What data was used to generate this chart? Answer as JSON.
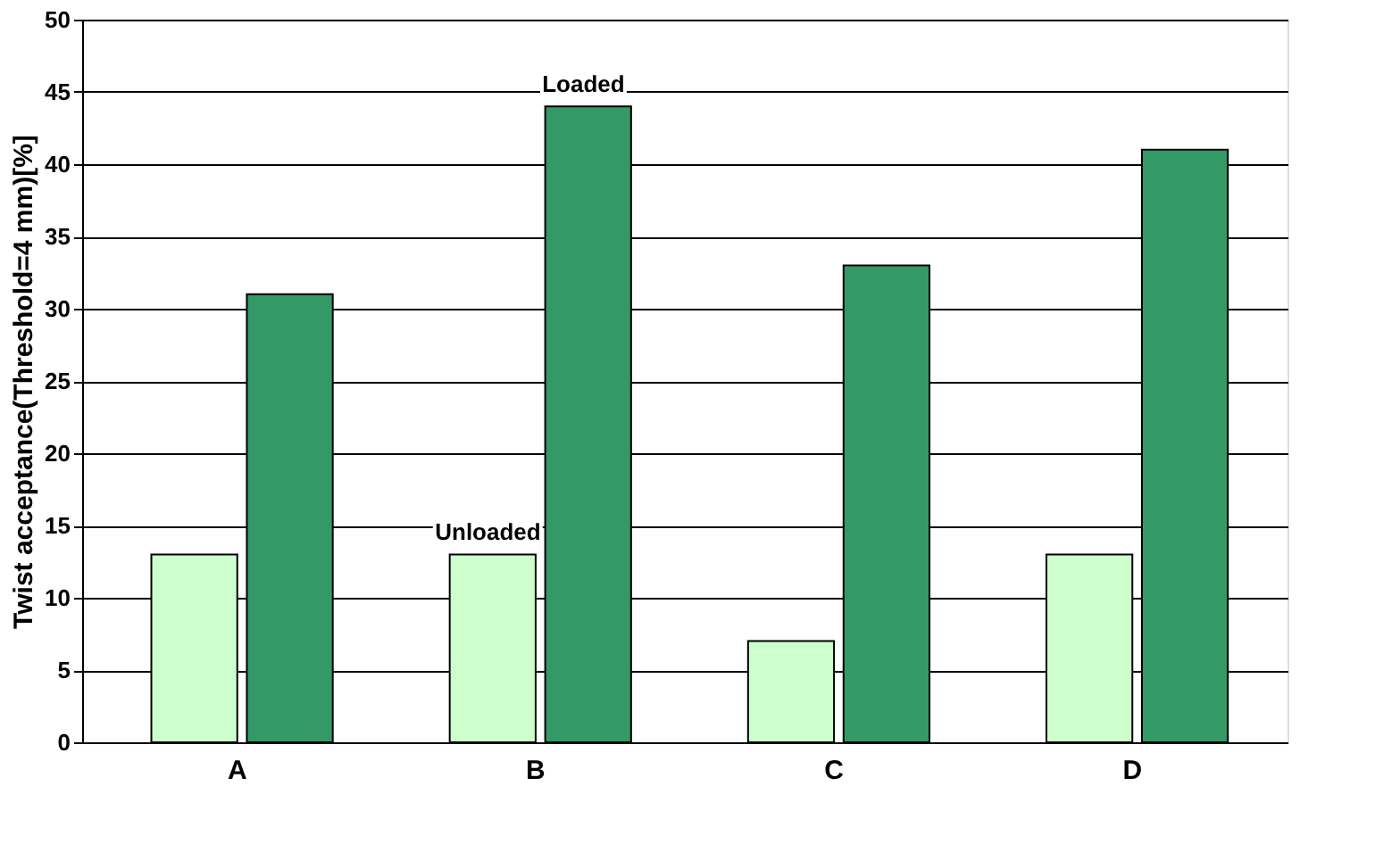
{
  "chart_data": {
    "type": "bar",
    "ylabel": "Twist acceptance(Threshold=4 mm)[%]",
    "categories": [
      "A",
      "B",
      "C",
      "D"
    ],
    "series": [
      {
        "name": "Unloaded",
        "color": "#ccffcc",
        "values": [
          13,
          13,
          7,
          13
        ]
      },
      {
        "name": "Loaded",
        "color": "#339966",
        "values": [
          31,
          44,
          33,
          41
        ]
      }
    ],
    "ylim": [
      0,
      50
    ],
    "yticks": [
      0,
      5,
      10,
      15,
      20,
      25,
      30,
      35,
      40,
      45,
      50
    ],
    "grid": "y",
    "legend": false
  }
}
